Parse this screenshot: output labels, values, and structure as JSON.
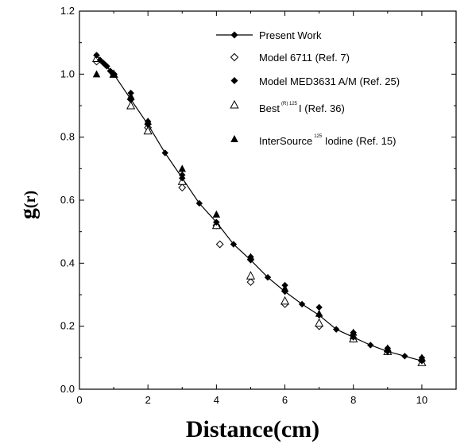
{
  "chart_data": {
    "type": "scatter",
    "xlabel": "Distance(cm)",
    "ylabel_main": "g",
    "ylabel_paren": "(r)",
    "xlim": [
      0,
      11
    ],
    "ylim": [
      0,
      1.2
    ],
    "x_ticks": [
      0,
      2,
      4,
      6,
      8,
      10
    ],
    "x_tick_labels": [
      "0",
      "2",
      "4",
      "6",
      "8",
      "10"
    ],
    "y_ticks": [
      0,
      0.2,
      0.4,
      0.6,
      0.8,
      1.0,
      1.2
    ],
    "y_tick_labels": [
      "0.0",
      "0.2",
      "0.4",
      "0.6",
      "0.8",
      "1.0",
      "1.2"
    ],
    "legend_position": "top-right",
    "series": [
      {
        "name": "Present Work",
        "marker": "filled-diamond-line",
        "x": [
          0.5,
          0.6,
          0.7,
          0.75,
          0.8,
          0.9,
          1.0,
          1.5,
          2.0,
          2.5,
          3.0,
          3.5,
          4.0,
          4.5,
          5.0,
          5.5,
          6.0,
          6.5,
          7.0,
          7.5,
          8.0,
          8.5,
          9.0,
          9.5,
          10.0
        ],
        "y": [
          1.06,
          1.045,
          1.035,
          1.03,
          1.025,
          1.01,
          1.0,
          0.92,
          0.84,
          0.75,
          0.67,
          0.59,
          0.53,
          0.46,
          0.41,
          0.355,
          0.31,
          0.27,
          0.235,
          0.19,
          0.165,
          0.14,
          0.12,
          0.105,
          0.09
        ]
      },
      {
        "name": "Model 6711 (Ref. 7)",
        "marker": "open-diamond",
        "x": [
          0.5,
          1.0,
          1.5,
          2.0,
          3.0,
          4.0,
          4.1,
          5.0,
          6.0,
          7.0,
          8.0,
          9.0,
          10.0
        ],
        "y": [
          1.04,
          1.0,
          0.92,
          0.83,
          0.64,
          0.52,
          0.46,
          0.34,
          0.27,
          0.2,
          0.16,
          0.12,
          0.09
        ]
      },
      {
        "name": "Model MED3631 A/M (Ref. 25)",
        "marker": "filled-diamond",
        "x": [
          0.5,
          1.0,
          1.5,
          2.0,
          3.0,
          4.0,
          5.0,
          6.0,
          7.0,
          8.0,
          9.0,
          10.0
        ],
        "y": [
          1.06,
          1.0,
          0.94,
          0.85,
          0.68,
          0.53,
          0.42,
          0.33,
          0.26,
          0.18,
          0.13,
          0.1
        ]
      },
      {
        "name_main": "Best",
        "name_sup": "(R) 125",
        "name_rest": "I (Ref. 36)",
        "marker": "open-triangle",
        "x": [
          0.5,
          1.0,
          1.5,
          2.0,
          3.0,
          4.0,
          5.0,
          6.0,
          7.0,
          8.0,
          9.0,
          10.0
        ],
        "y": [
          1.05,
          1.0,
          0.9,
          0.82,
          0.66,
          0.52,
          0.36,
          0.28,
          0.21,
          0.16,
          0.12,
          0.085
        ]
      },
      {
        "name_main": "InterSource",
        "name_sup": "125",
        "name_rest": " Iodine (Ref. 15)",
        "marker": "filled-triangle",
        "x": [
          0.5,
          1.0,
          1.5,
          2.0,
          3.0,
          4.0,
          5.0,
          6.0,
          7.0,
          8.0,
          9.0,
          10.0
        ],
        "y": [
          1.0,
          1.0,
          0.93,
          0.85,
          0.7,
          0.555,
          0.42,
          0.32,
          0.24,
          0.18,
          0.13,
          0.1
        ]
      }
    ]
  }
}
